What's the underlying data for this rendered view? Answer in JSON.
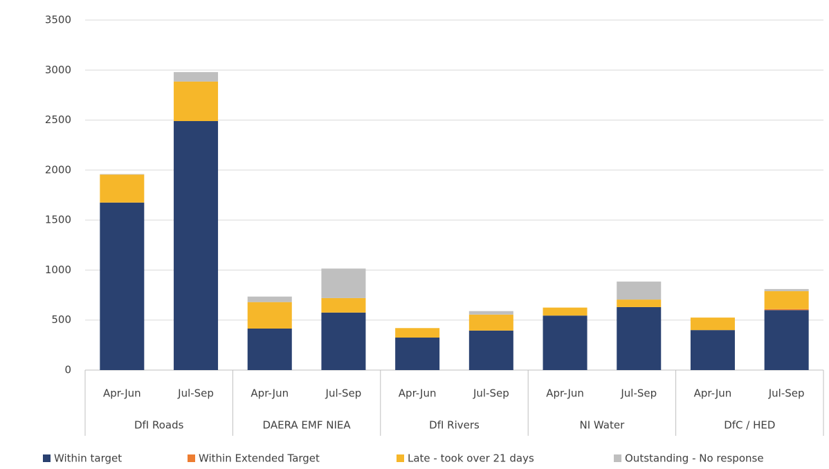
{
  "chart_data": {
    "type": "stacked_bar",
    "groups": [
      "DfI Roads",
      "DAERA EMF NIEA",
      "DfI Rivers",
      "NI Water",
      "DfC / HED"
    ],
    "categories": [
      "Apr-Jun",
      "Jul-Sep",
      "Apr-Jun",
      "Jul-Sep",
      "Apr-Jun",
      "Jul-Sep",
      "Apr-Jun",
      "Jul-Sep",
      "Apr-Jun",
      "Jul-Sep"
    ],
    "series": [
      {
        "name": "Within target",
        "color": "#2a4170",
        "values": [
          1675,
          2490,
          415,
          575,
          325,
          395,
          545,
          630,
          400,
          600
        ]
      },
      {
        "name": "Within Extended Target",
        "color": "#ed7d31",
        "values": [
          0,
          0,
          0,
          0,
          0,
          0,
          0,
          0,
          0,
          10
        ]
      },
      {
        "name": "Late - took over 21 days",
        "color": "#f6b72a",
        "values": [
          280,
          395,
          265,
          145,
          95,
          160,
          80,
          75,
          125,
          180
        ]
      },
      {
        "name": "Outstanding - No response",
        "color": "#bfbfbf",
        "values": [
          5,
          95,
          55,
          295,
          0,
          35,
          0,
          180,
          0,
          20
        ]
      }
    ],
    "ylim": [
      0,
      3500
    ],
    "yticks": [
      0,
      500,
      1000,
      1500,
      2000,
      2500,
      3000,
      3500
    ],
    "grid": true,
    "legend": "bottom"
  }
}
